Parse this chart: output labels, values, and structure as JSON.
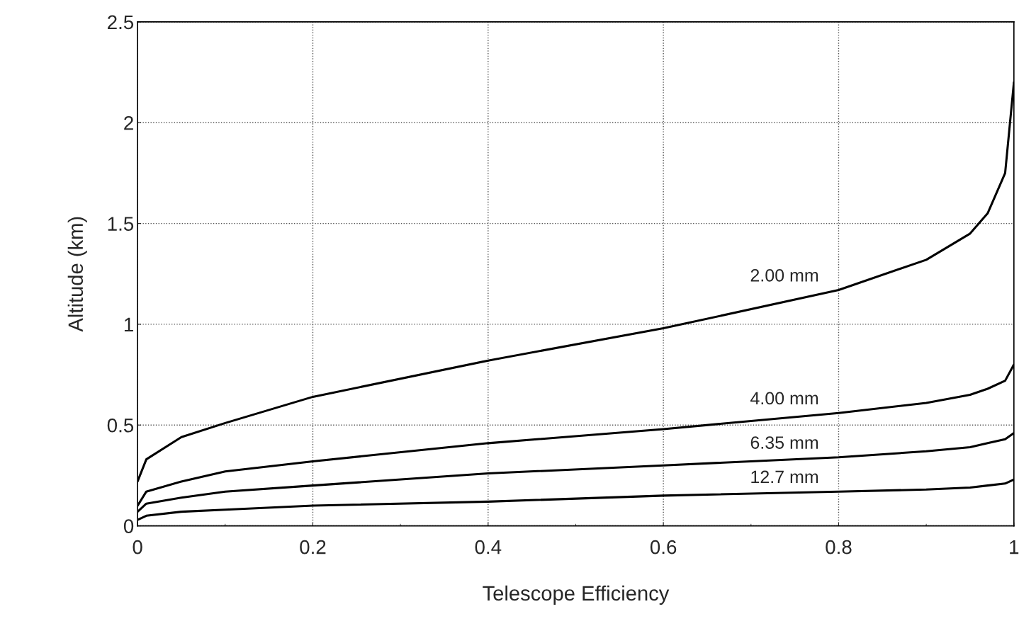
{
  "chart_data": {
    "type": "line",
    "xlabel": "Telescope Efficiency",
    "ylabel": "Altitude (km)",
    "x": [
      0,
      0.01,
      0.05,
      0.1,
      0.2,
      0.4,
      0.6,
      0.8,
      0.9,
      0.95,
      0.97,
      0.99,
      1.0
    ],
    "series": [
      {
        "name": "2.00 mm",
        "color": "#000000",
        "values": [
          0.22,
          0.33,
          0.44,
          0.51,
          0.64,
          0.82,
          0.98,
          1.17,
          1.32,
          1.45,
          1.55,
          1.75,
          2.2
        ]
      },
      {
        "name": "4.00 mm",
        "color": "#000000",
        "values": [
          0.1,
          0.17,
          0.22,
          0.27,
          0.32,
          0.41,
          0.48,
          0.56,
          0.61,
          0.65,
          0.68,
          0.72,
          0.8
        ]
      },
      {
        "name": "6.35 mm",
        "color": "#000000",
        "values": [
          0.07,
          0.11,
          0.14,
          0.17,
          0.2,
          0.26,
          0.3,
          0.34,
          0.37,
          0.39,
          0.41,
          0.43,
          0.46
        ]
      },
      {
        "name": "12.7 mm",
        "color": "#000000",
        "values": [
          0.03,
          0.05,
          0.07,
          0.08,
          0.1,
          0.12,
          0.15,
          0.17,
          0.18,
          0.19,
          0.2,
          0.21,
          0.23
        ]
      }
    ],
    "xlim": [
      0,
      1
    ],
    "ylim": [
      0,
      2.5
    ],
    "xticks": [
      0,
      {
        "value": 0.1,
        "label": null
      },
      0.2,
      {
        "value": 0.3,
        "label": null
      },
      0.4,
      {
        "value": 0.5,
        "label": null
      },
      0.6,
      {
        "value": 0.7,
        "label": null
      },
      0.8,
      {
        "value": 0.9,
        "label": null
      },
      1
    ],
    "yticks": [
      0,
      0.5,
      1,
      1.5,
      2,
      2.5
    ],
    "grid": true,
    "legend": false,
    "marker": "none",
    "line_style": "solid"
  }
}
